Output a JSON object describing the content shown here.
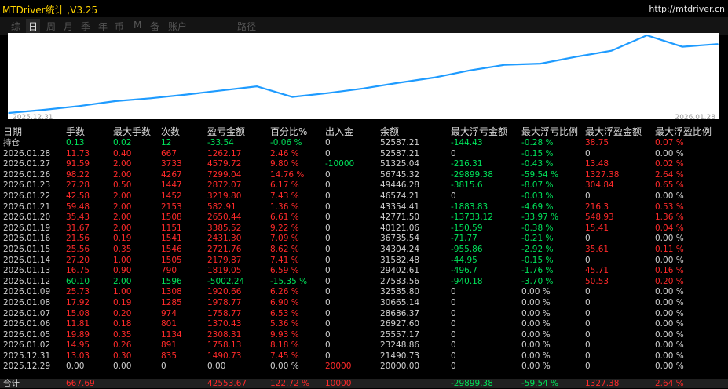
{
  "app": {
    "title": "MTDriver统计 ,V3.25",
    "url": "http://mtdriver.cn"
  },
  "tabs": [
    {
      "label": "综",
      "active": false
    },
    {
      "label": "日",
      "active": true
    },
    {
      "label": "周",
      "active": false
    },
    {
      "label": "月",
      "active": false
    },
    {
      "label": "季",
      "active": false
    },
    {
      "label": "年",
      "active": false
    },
    {
      "label": "币",
      "active": false
    },
    {
      "label": "M",
      "active": false
    },
    {
      "label": "备",
      "active": false
    },
    {
      "label": "账户",
      "active": false
    },
    {
      "label": "路径",
      "active": false
    }
  ],
  "chart_data": {
    "type": "line",
    "x": [
      "2025.12.29",
      "2025.12.31",
      "2026.01.02",
      "2026.01.05",
      "2026.01.06",
      "2026.01.07",
      "2026.01.08",
      "2026.01.09",
      "2026.01.12",
      "2026.01.13",
      "2026.01.14",
      "2026.01.15",
      "2026.01.16",
      "2026.01.19",
      "2026.01.20",
      "2026.01.21",
      "2026.01.22",
      "2026.01.23",
      "2026.01.26",
      "2026.01.27",
      "2026.01.28"
    ],
    "series": [
      {
        "values": [
          20000,
          21490.73,
          23248.86,
          25557.17,
          26927.6,
          28686.37,
          30665.14,
          32585.8,
          27583.56,
          29402.61,
          31582.48,
          34304.24,
          36735.54,
          40121.06,
          42771.5,
          43354.41,
          46574.21,
          49446.28,
          56745.32,
          51325.04,
          52587.21
        ]
      }
    ],
    "start_label": "2025.12.31",
    "end_label": "2026.01.28",
    "line_color": "#1e9bff"
  },
  "headers": [
    "日期",
    "手数",
    "最大手数",
    "次数",
    "盈亏金额",
    "百分比%",
    "出入金",
    "余额",
    "最大浮亏金额",
    "最大浮亏比例",
    "最大浮盈金额",
    "最大浮盈比例"
  ],
  "rows": [
    {
      "d": "持仓",
      "lots": "0.13",
      "max_lots": "0.02",
      "count": "12",
      "pnl": "-33.54",
      "pct": "-0.06 %",
      "flow": "0",
      "bal": "52587.21",
      "mdd": "-144.43",
      "mddp": "-0.28 %",
      "mfp": "38.75",
      "mfpp": "0.07 %",
      "cls": "g",
      "cmf": "r"
    },
    {
      "d": "2026.01.28",
      "lots": "11.73",
      "max_lots": "0.40",
      "count": "667",
      "pnl": "1262.17",
      "pct": "2.46 %",
      "flow": "0",
      "bal": "52587.21",
      "mdd": "0",
      "mddp": "-0.15 %",
      "mfp": "0",
      "mfpp": "0.00 %",
      "cls": "r",
      "cmf": "w"
    },
    {
      "d": "2026.01.27",
      "lots": "91.59",
      "max_lots": "2.00",
      "count": "3733",
      "pnl": "4579.72",
      "pct": "9.80 %",
      "flow": "-10000",
      "bal": "51325.04",
      "mdd": "-216.31",
      "mddp": "-0.43 %",
      "mfp": "13.48",
      "mfpp": "0.02 %",
      "cls": "r",
      "cmf": "r",
      "flowg": true
    },
    {
      "d": "2026.01.26",
      "lots": "98.22",
      "max_lots": "2.00",
      "count": "4267",
      "pnl": "7299.04",
      "pct": "14.76 %",
      "flow": "0",
      "bal": "56745.32",
      "mdd": "-29899.38",
      "mddp": "-59.54 %",
      "mfp": "1327.38",
      "mfpp": "2.64 %",
      "cls": "r",
      "cmf": "r"
    },
    {
      "d": "2026.01.23",
      "lots": "27.28",
      "max_lots": "0.50",
      "count": "1447",
      "pnl": "2872.07",
      "pct": "6.17 %",
      "flow": "0",
      "bal": "49446.28",
      "mdd": "-3815.6",
      "mddp": "-8.07 %",
      "mfp": "304.84",
      "mfpp": "0.65 %",
      "cls": "r",
      "cmf": "r"
    },
    {
      "d": "2026.01.22",
      "lots": "42.58",
      "max_lots": "2.00",
      "count": "1452",
      "pnl": "3219.80",
      "pct": "7.43 %",
      "flow": "0",
      "bal": "46574.21",
      "mdd": "0",
      "mddp": "-0.03 %",
      "mfp": "0",
      "mfpp": "0.00 %",
      "cls": "r",
      "cmf": "w"
    },
    {
      "d": "2026.01.21",
      "lots": "59.48",
      "max_lots": "2.00",
      "count": "2153",
      "pnl": "582.91",
      "pct": "1.36 %",
      "flow": "0",
      "bal": "43354.41",
      "mdd": "-1883.83",
      "mddp": "-4.69 %",
      "mfp": "216.3",
      "mfpp": "0.53 %",
      "cls": "r",
      "cmf": "r"
    },
    {
      "d": "2026.01.20",
      "lots": "35.43",
      "max_lots": "2.00",
      "count": "1508",
      "pnl": "2650.44",
      "pct": "6.61 %",
      "flow": "0",
      "bal": "42771.50",
      "mdd": "-13733.12",
      "mddp": "-33.97 %",
      "mfp": "548.93",
      "mfpp": "1.36 %",
      "cls": "r",
      "cmf": "r"
    },
    {
      "d": "2026.01.19",
      "lots": "31.67",
      "max_lots": "2.00",
      "count": "1151",
      "pnl": "3385.52",
      "pct": "9.22 %",
      "flow": "0",
      "bal": "40121.06",
      "mdd": "-150.59",
      "mddp": "-0.38 %",
      "mfp": "15.41",
      "mfpp": "0.04 %",
      "cls": "r",
      "cmf": "r"
    },
    {
      "d": "2026.01.16",
      "lots": "21.56",
      "max_lots": "0.19",
      "count": "1541",
      "pnl": "2431.30",
      "pct": "7.09 %",
      "flow": "0",
      "bal": "36735.54",
      "mdd": "-71.77",
      "mddp": "-0.21 %",
      "mfp": "0",
      "mfpp": "0.00 %",
      "cls": "r",
      "cmf": "w"
    },
    {
      "d": "2026.01.15",
      "lots": "25.56",
      "max_lots": "0.35",
      "count": "1546",
      "pnl": "2721.76",
      "pct": "8.62 %",
      "flow": "0",
      "bal": "34304.24",
      "mdd": "-955.86",
      "mddp": "-2.92 %",
      "mfp": "35.61",
      "mfpp": "0.11 %",
      "cls": "r",
      "cmf": "r"
    },
    {
      "d": "2026.01.14",
      "lots": "27.20",
      "max_lots": "1.00",
      "count": "1505",
      "pnl": "2179.87",
      "pct": "7.41 %",
      "flow": "0",
      "bal": "31582.48",
      "mdd": "-44.95",
      "mddp": "-0.15 %",
      "mfp": "0",
      "mfpp": "0.00 %",
      "cls": "r",
      "cmf": "w"
    },
    {
      "d": "2026.01.13",
      "lots": "16.75",
      "max_lots": "0.90",
      "count": "790",
      "pnl": "1819.05",
      "pct": "6.59 %",
      "flow": "0",
      "bal": "29402.61",
      "mdd": "-496.7",
      "mddp": "-1.76 %",
      "mfp": "45.71",
      "mfpp": "0.16 %",
      "cls": "r",
      "cmf": "r"
    },
    {
      "d": "2026.01.12",
      "lots": "60.10",
      "max_lots": "2.00",
      "count": "1596",
      "pnl": "-5002.24",
      "pct": "-15.35 %",
      "flow": "0",
      "bal": "27583.56",
      "mdd": "-940.18",
      "mddp": "-3.70 %",
      "mfp": "50.53",
      "mfpp": "0.20 %",
      "cls": "g",
      "cmf": "r"
    },
    {
      "d": "2026.01.09",
      "lots": "25.73",
      "max_lots": "1.00",
      "count": "1308",
      "pnl": "1920.66",
      "pct": "6.26 %",
      "flow": "0",
      "bal": "32585.80",
      "mdd": "0",
      "mddp": "0.00 %",
      "mfp": "0",
      "mfpp": "0.00 %",
      "cls": "r",
      "cmf": "w"
    },
    {
      "d": "2026.01.08",
      "lots": "17.92",
      "max_lots": "0.19",
      "count": "1285",
      "pnl": "1978.77",
      "pct": "6.90 %",
      "flow": "0",
      "bal": "30665.14",
      "mdd": "0",
      "mddp": "0.00 %",
      "mfp": "0",
      "mfpp": "0.00 %",
      "cls": "r",
      "cmf": "w"
    },
    {
      "d": "2026.01.07",
      "lots": "15.08",
      "max_lots": "0.20",
      "count": "974",
      "pnl": "1758.77",
      "pct": "6.53 %",
      "flow": "0",
      "bal": "28686.37",
      "mdd": "0",
      "mddp": "0.00 %",
      "mfp": "0",
      "mfpp": "0.00 %",
      "cls": "r",
      "cmf": "w"
    },
    {
      "d": "2026.01.06",
      "lots": "11.81",
      "max_lots": "0.18",
      "count": "801",
      "pnl": "1370.43",
      "pct": "5.36 %",
      "flow": "0",
      "bal": "26927.60",
      "mdd": "0",
      "mddp": "0.00 %",
      "mfp": "0",
      "mfpp": "0.00 %",
      "cls": "r",
      "cmf": "w"
    },
    {
      "d": "2026.01.05",
      "lots": "19.89",
      "max_lots": "0.35",
      "count": "1134",
      "pnl": "2308.31",
      "pct": "9.93 %",
      "flow": "0",
      "bal": "25557.17",
      "mdd": "0",
      "mddp": "0.00 %",
      "mfp": "0",
      "mfpp": "0.00 %",
      "cls": "r",
      "cmf": "w"
    },
    {
      "d": "2026.01.02",
      "lots": "14.95",
      "max_lots": "0.26",
      "count": "891",
      "pnl": "1758.13",
      "pct": "8.18 %",
      "flow": "0",
      "bal": "23248.86",
      "mdd": "0",
      "mddp": "0.00 %",
      "mfp": "0",
      "mfpp": "0.00 %",
      "cls": "r",
      "cmf": "w"
    },
    {
      "d": "2025.12.31",
      "lots": "13.03",
      "max_lots": "0.30",
      "count": "835",
      "pnl": "1490.73",
      "pct": "7.45 %",
      "flow": "0",
      "bal": "21490.73",
      "mdd": "0",
      "mddp": "0.00 %",
      "mfp": "0",
      "mfpp": "0.00 %",
      "cls": "r",
      "cmf": "w"
    },
    {
      "d": "2025.12.29",
      "lots": "0.00",
      "max_lots": "0.00",
      "count": "0",
      "pnl": "0.00",
      "pct": "0.00 %",
      "flow": "20000",
      "bal": "20000.00",
      "mdd": "0",
      "mddp": "0.00 %",
      "mfp": "0",
      "mfpp": "0.00 %",
      "cls": "w",
      "cmf": "w",
      "flowr": true
    }
  ],
  "total": {
    "d": "合计",
    "lots": "667.69",
    "pnl": "42553.67",
    "pct": "122.72 %",
    "flow": "10000",
    "mdd": "-29899.38",
    "mddp": "-59.54 %",
    "mfp": "1327.38",
    "mfpp": "2.64 %"
  }
}
